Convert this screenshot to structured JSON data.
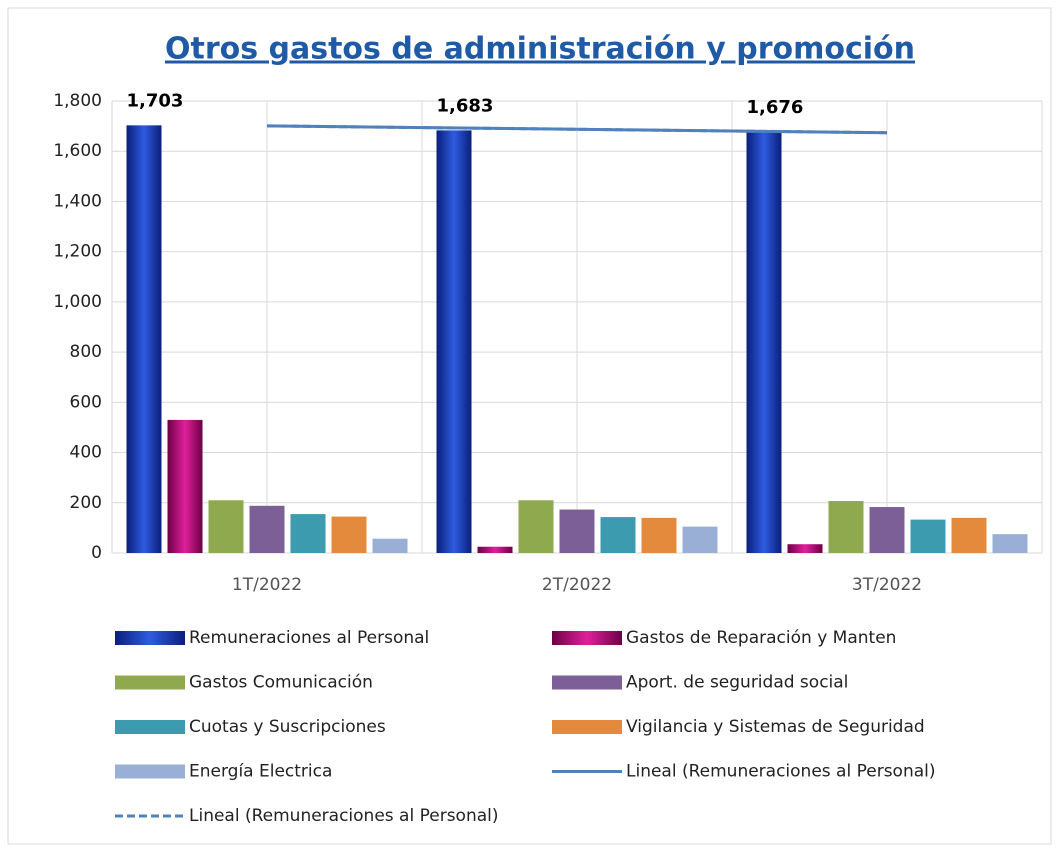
{
  "chart_data": {
    "type": "bar",
    "title": "Otros gastos de administración y promoción",
    "categories": [
      "1T/2022",
      "2T/2022",
      "3T/2022"
    ],
    "series": [
      {
        "name": "Remuneraciones al Personal",
        "color": "#1e3fc0",
        "values": [
          1703,
          1683,
          1676
        ],
        "value_labels": [
          "1,703",
          "1,683",
          "1,676"
        ]
      },
      {
        "name": "Gastos de Reparación y Manten",
        "color": "#b0106e",
        "values": [
          530,
          25,
          35
        ]
      },
      {
        "name": "Gastos Comunicación",
        "color": "#8faa4e",
        "values": [
          210,
          210,
          207
        ]
      },
      {
        "name": "Aport. de seguridad social",
        "color": "#7d5f97",
        "values": [
          188,
          173,
          183
        ]
      },
      {
        "name": "Cuotas y Suscripciones",
        "color": "#3d9bb0",
        "values": [
          155,
          143,
          133
        ]
      },
      {
        "name": "Vigilancia y Sistemas de Seguridad",
        "color": "#e38a3c",
        "values": [
          145,
          140,
          140
        ]
      },
      {
        "name": "Energía Electrica",
        "color": "#9aafd6",
        "values": [
          57,
          105,
          75
        ]
      }
    ],
    "trendlines": [
      {
        "name": "Lineal (Remuneraciones al Personal)",
        "color": "#4f81bd",
        "dash": false,
        "values": [
          1700.8,
          1687.3,
          1673.8
        ]
      },
      {
        "name": "Lineal (Remuneraciones al Personal)",
        "color": "#4f81bd",
        "dash": true,
        "values": [
          1700.8,
          1687.3,
          1673.8
        ]
      }
    ],
    "ylim": [
      0,
      1800
    ],
    "yticks": [
      0,
      200,
      400,
      600,
      800,
      {
        "value": 1000,
        "label": "1,000"
      },
      {
        "value": 1200,
        "label": "1,200"
      },
      {
        "value": 1400,
        "label": "1,400"
      },
      {
        "value": 1600,
        "label": "1,600"
      },
      {
        "value": 1800,
        "label": "1,800"
      }
    ],
    "grid": true
  }
}
